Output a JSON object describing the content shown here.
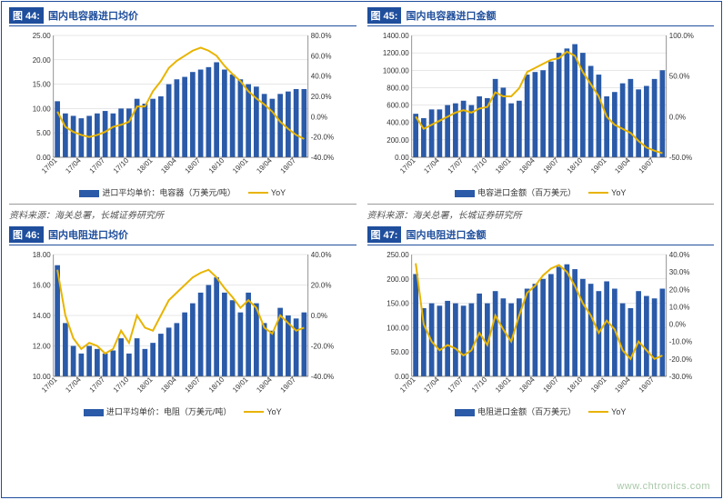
{
  "watermark": "www.chtronics.com",
  "colors": {
    "brand": "#1f4e9c",
    "bar": "#2a5aa8",
    "line": "#e8b400",
    "grid": "#cfcfcf",
    "axis": "#666666",
    "text": "#333333",
    "bg": "#ffffff"
  },
  "x_categories": [
    "17/01",
    "17/04",
    "17/07",
    "17/10",
    "18/01",
    "18/04",
    "18/07",
    "18/10",
    "19/01",
    "19/04",
    "19/07"
  ],
  "charts": [
    {
      "tag": "图 44:",
      "title": "国内电容器进口均价",
      "type": "bar-line",
      "y_left": {
        "min": 0,
        "max": 25,
        "step": 5,
        "fmt": "f2"
      },
      "y_right": {
        "min": -40,
        "max": 80,
        "step": 20,
        "fmt": "pct1"
      },
      "bars": [
        11.5,
        9.0,
        8.5,
        8.0,
        8.5,
        9.0,
        9.5,
        9.0,
        10.0,
        10.0,
        12.0,
        11.0,
        12.0,
        12.5,
        15.0,
        16.0,
        16.5,
        17.5,
        18.0,
        18.5,
        19.5,
        18.0,
        17.0,
        16.0,
        15.0,
        14.5,
        13.0,
        12.0,
        13.0,
        13.5,
        14.0,
        14.0
      ],
      "line": [
        5,
        -10,
        -15,
        -18,
        -20,
        -18,
        -15,
        -10,
        -8,
        -5,
        10,
        10,
        25,
        35,
        48,
        55,
        60,
        65,
        68,
        65,
        60,
        50,
        42,
        35,
        25,
        18,
        12,
        5,
        -5,
        -12,
        -18,
        -22
      ],
      "legend_bar": "进口平均单价：电容器（万美元/吨）",
      "legend_line": "YoY",
      "source": "资料来源：海关总署，长城证券研究所"
    },
    {
      "tag": "图 45:",
      "title": "国内电容器进口金额",
      "type": "bar-line",
      "y_left": {
        "min": 0,
        "max": 1400,
        "step": 200,
        "fmt": "f2"
      },
      "y_right": {
        "min": -50,
        "max": 100,
        "step": 50,
        "fmt": "pct1"
      },
      "bars": [
        500,
        450,
        550,
        550,
        600,
        620,
        650,
        600,
        700,
        680,
        900,
        800,
        620,
        650,
        950,
        980,
        1000,
        1100,
        1200,
        1250,
        1300,
        1200,
        1050,
        950,
        700,
        750,
        850,
        900,
        780,
        820,
        900,
        1000
      ],
      "line": [
        0,
        -15,
        -10,
        -5,
        0,
        5,
        8,
        5,
        10,
        12,
        30,
        25,
        25,
        35,
        55,
        60,
        65,
        70,
        72,
        80,
        75,
        55,
        40,
        25,
        0,
        -10,
        -15,
        -20,
        -30,
        -38,
        -42,
        -45
      ],
      "legend_bar": "电容进口金额（百万美元）",
      "legend_line": "YoY",
      "source": "资料来源：海关总署，长城证券研究所"
    },
    {
      "tag": "图 46:",
      "title": "国内电阻进口均价",
      "type": "bar-line",
      "y_left": {
        "min": 10,
        "max": 18,
        "step": 2,
        "fmt": "f2"
      },
      "y_right": {
        "min": -40,
        "max": 40,
        "step": 20,
        "fmt": "pct1"
      },
      "bars": [
        17.3,
        13.5,
        12.0,
        11.5,
        12.0,
        11.8,
        11.5,
        11.7,
        12.5,
        11.5,
        12.5,
        11.8,
        12.2,
        12.8,
        13.2,
        13.5,
        14.2,
        14.8,
        15.5,
        16.0,
        16.5,
        15.5,
        15.0,
        14.2,
        15.5,
        14.8,
        13.5,
        13.0,
        14.5,
        14.0,
        13.8,
        14.2
      ],
      "line": [
        30,
        0,
        -15,
        -22,
        -18,
        -20,
        -25,
        -22,
        -10,
        -18,
        0,
        -8,
        -10,
        0,
        10,
        15,
        20,
        25,
        28,
        30,
        25,
        18,
        12,
        5,
        10,
        5,
        -8,
        -12,
        0,
        -5,
        -10,
        -8
      ],
      "legend_bar": "进口平均单价：电阻（万美元/吨）",
      "legend_line": "YoY",
      "source": ""
    },
    {
      "tag": "图 47:",
      "title": "国内电阻进口金额",
      "type": "bar-line",
      "y_left": {
        "min": 0,
        "max": 250,
        "step": 50,
        "fmt": "f2"
      },
      "y_right": {
        "min": -30,
        "max": 40,
        "step": 10,
        "fmt": "pct1"
      },
      "bars": [
        210,
        140,
        150,
        145,
        155,
        150,
        145,
        150,
        170,
        150,
        175,
        160,
        150,
        160,
        180,
        190,
        200,
        210,
        225,
        230,
        220,
        200,
        190,
        175,
        195,
        180,
        150,
        140,
        175,
        165,
        160,
        180
      ],
      "line": [
        35,
        0,
        -10,
        -15,
        -12,
        -14,
        -18,
        -15,
        -5,
        -12,
        5,
        -3,
        -10,
        5,
        18,
        22,
        28,
        32,
        34,
        30,
        22,
        12,
        5,
        -5,
        2,
        -3,
        -15,
        -20,
        -10,
        -15,
        -20,
        -18
      ],
      "legend_bar": "电阻进口金额（百万美元）",
      "legend_line": "YoY",
      "source": ""
    }
  ]
}
